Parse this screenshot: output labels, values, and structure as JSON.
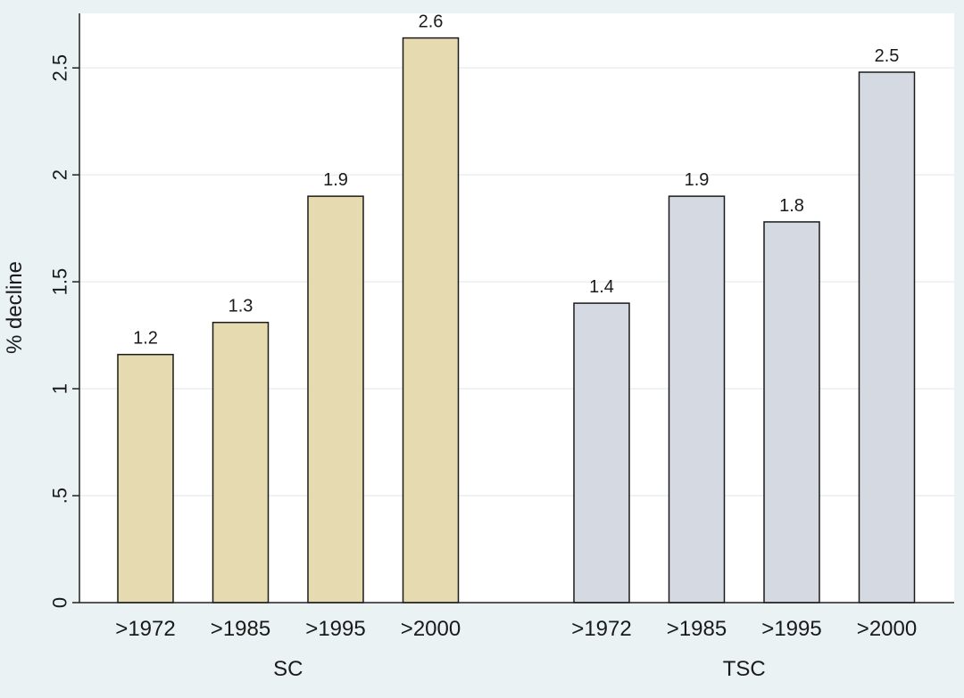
{
  "chart_data": {
    "type": "bar",
    "ylabel": "% decline",
    "ylim": [
      0,
      2.75
    ],
    "yticks": [
      0,
      0.5,
      1,
      1.5,
      2,
      2.5
    ],
    "ytick_labels": [
      "0",
      ".5",
      "1",
      "1.5",
      "2",
      "2.5"
    ],
    "grid": true,
    "groups": [
      {
        "name": "SC",
        "color": "#e6dbb0",
        "categories": [
          ">1972",
          ">1985",
          ">1995",
          ">2000"
        ],
        "values": [
          1.16,
          1.31,
          1.9,
          2.64
        ],
        "data_labels": [
          "1.2",
          "1.3",
          "1.9",
          "2.6"
        ]
      },
      {
        "name": "TSC",
        "color": "#d5d9e2",
        "categories": [
          ">1972",
          ">1985",
          ">1995",
          ">2000"
        ],
        "values": [
          1.4,
          1.9,
          1.78,
          2.48
        ],
        "data_labels": [
          "1.4",
          "1.9",
          "1.8",
          "2.5"
        ]
      }
    ]
  }
}
